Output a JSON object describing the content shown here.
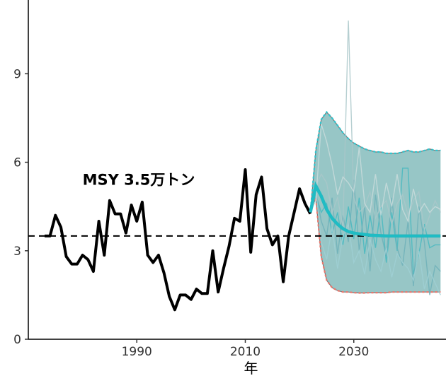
{
  "chart_data": {
    "type": "line",
    "xlabel": "年",
    "ylabel": "",
    "xlim": [
      1970,
      2047
    ],
    "ylim": [
      0,
      11.5
    ],
    "x_ticks": [
      1990,
      2010,
      2030
    ],
    "y_ticks": [
      0,
      3,
      6,
      9
    ],
    "annotation": "MSY 3.5万トン",
    "msy_value": 3.5,
    "colors": {
      "observed": "#000000",
      "median": "#1fbcc4",
      "band_fill": "#5fa8a8",
      "band_edge_cyan": "#2fc6cf",
      "band_edge_red": "#f0756a",
      "band_outline": "#777777",
      "traj": [
        "#47b8c0",
        "#6fb0b8",
        "#9fcfd3",
        "#a9c7c9",
        "#c8dadb"
      ]
    },
    "observed": {
      "x": [
        1973,
        1974,
        1975,
        1976,
        1977,
        1978,
        1979,
        1980,
        1981,
        1982,
        1983,
        1984,
        1985,
        1986,
        1987,
        1988,
        1989,
        1990,
        1991,
        1992,
        1993,
        1994,
        1995,
        1996,
        1997,
        1998,
        1999,
        2000,
        2001,
        2002,
        2003,
        2004,
        2005,
        2006,
        2007,
        2008,
        2009,
        2010,
        2011,
        2012,
        2013,
        2014,
        2015,
        2016,
        2017,
        2018,
        2019,
        2020,
        2021,
        2022
      ],
      "y": [
        3.5,
        3.5,
        4.2,
        3.8,
        2.8,
        2.55,
        2.55,
        2.85,
        2.7,
        2.3,
        4.0,
        2.85,
        4.7,
        4.25,
        4.25,
        3.6,
        4.55,
        4.0,
        4.65,
        2.85,
        2.6,
        2.85,
        2.25,
        1.45,
        1.0,
        1.5,
        1.5,
        1.35,
        1.7,
        1.55,
        1.55,
        3.0,
        1.6,
        2.4,
        3.15,
        4.1,
        4.0,
        5.75,
        2.95,
        4.9,
        5.5,
        3.75,
        3.2,
        3.5,
        1.95,
        3.5,
        4.3,
        5.1,
        4.6,
        4.25
      ]
    },
    "projection": {
      "x": [
        2022,
        2023,
        2024,
        2025,
        2026,
        2027,
        2028,
        2029,
        2030,
        2031,
        2032,
        2033,
        2034,
        2035,
        2036,
        2037,
        2038,
        2039,
        2040,
        2041,
        2042,
        2043,
        2044,
        2045,
        2046
      ],
      "median": [
        4.3,
        5.2,
        4.85,
        4.4,
        4.1,
        3.9,
        3.75,
        3.65,
        3.6,
        3.57,
        3.55,
        3.53,
        3.52,
        3.51,
        3.5,
        3.5,
        3.5,
        3.5,
        3.5,
        3.5,
        3.5,
        3.5,
        3.5,
        3.5,
        3.5
      ],
      "upper": [
        4.3,
        6.4,
        7.45,
        7.7,
        7.5,
        7.25,
        7.0,
        6.8,
        6.65,
        6.55,
        6.45,
        6.4,
        6.35,
        6.35,
        6.3,
        6.3,
        6.3,
        6.35,
        6.4,
        6.35,
        6.35,
        6.4,
        6.45,
        6.4,
        6.4
      ],
      "lower": [
        4.3,
        4.8,
        2.8,
        2.0,
        1.75,
        1.65,
        1.6,
        1.6,
        1.58,
        1.57,
        1.57,
        1.58,
        1.58,
        1.58,
        1.58,
        1.6,
        1.6,
        1.6,
        1.6,
        1.6,
        1.6,
        1.6,
        1.6,
        1.6,
        1.6
      ],
      "trajectories": [
        [
          4.3,
          4.9,
          4.3,
          4.6,
          3.6,
          4.3,
          3.2,
          4.5,
          3.4,
          4.8,
          2.9,
          4.2,
          3.1,
          4.5,
          2.6,
          4.3,
          3.0,
          5.8,
          5.8,
          2.2,
          2.9,
          3.9,
          3.1,
          3.2,
          3.2
        ],
        [
          4.3,
          5.0,
          4.0,
          3.5,
          4.8,
          2.9,
          4.2,
          3.3,
          5.4,
          3.0,
          4.5,
          2.3,
          4.9,
          3.6,
          2.8,
          4.8,
          3.1,
          2.5,
          4.0,
          1.8,
          4.5,
          3.3,
          1.5,
          2.5,
          2.3
        ],
        [
          4.3,
          5.1,
          3.3,
          2.7,
          3.8,
          2.4,
          3.5,
          3.9,
          2.6,
          3.0,
          2.2,
          3.4,
          2.7,
          2.3,
          3.1,
          2.1,
          2.9,
          2.6,
          2.4,
          2.0,
          3.0,
          1.7,
          2.3,
          1.9,
          1.5
        ],
        [
          4.3,
          5.2,
          5.6,
          5.3,
          4.3,
          4.8,
          3.8,
          10.8,
          4.8,
          4.3,
          4.5,
          5.0,
          4.1,
          4.5,
          4.7,
          3.9,
          4.6,
          4.9,
          4.2,
          4.7,
          5.0,
          3.7,
          4.2,
          4.7,
          4.3
        ],
        [
          4.3,
          4.7,
          7.3,
          6.7,
          5.9,
          4.9,
          5.5,
          5.3,
          5.0,
          6.5,
          4.6,
          4.3,
          5.6,
          4.2,
          5.3,
          4.5,
          5.6,
          4.4,
          4.0,
          5.1,
          4.3,
          4.6,
          4.3,
          4.5,
          4.4
        ]
      ]
    }
  }
}
